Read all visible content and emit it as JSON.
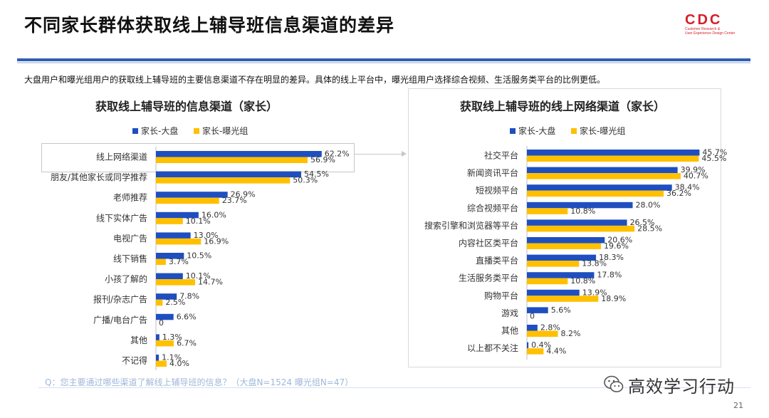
{
  "header": {
    "title": "不同家长群体获取线上辅导班信息渠道的差异",
    "logo_text": "CDC",
    "logo_sub_1": "Customer Research &",
    "logo_sub_2": "User Experience Design Center"
  },
  "summary": "大盘用户和曝光组用户的获取线上辅导班的主要信息渠道不存在明显的差异。具体的线上平台中，曝光组用户选择综合视频、生活服务类平台的比例更低。",
  "colors": {
    "series_1": "#1f4fbf",
    "series_2": "#ffc000",
    "accent": "#d5202a",
    "divider": "#2f5fb3"
  },
  "chart_data": [
    {
      "type": "bar",
      "orientation": "horizontal",
      "title": "获取线上辅导班的信息渠道（家长）",
      "legend_position": "top",
      "categories": [
        "线上网络渠道",
        "朋友/其他家长或同学推荐",
        "老师推荐",
        "线下实体广告",
        "电视广告",
        "线下销售",
        "小孩了解的",
        "报刊/杂志广告",
        "广播/电台广告",
        "其他",
        "不记得"
      ],
      "series": [
        {
          "name": "家长-大盘",
          "values": [
            62.2,
            54.5,
            26.9,
            16.0,
            13.0,
            10.5,
            10.1,
            7.8,
            6.6,
            1.3,
            1.1
          ],
          "labels": [
            "62.2%",
            "54.5%",
            "26.9%",
            "16.0%",
            "13.0%",
            "10.5%",
            "10.1%",
            "7.8%",
            "6.6%",
            "1.3%",
            "1.1%"
          ]
        },
        {
          "name": "家长-曝光组",
          "values": [
            56.9,
            50.3,
            23.7,
            10.1,
            16.9,
            3.7,
            14.7,
            2.5,
            0,
            6.7,
            4.0
          ],
          "labels": [
            "56.9%",
            "50.3%",
            "23.7%",
            "10.1%",
            "16.9%",
            "3.7%",
            "14.7%",
            "2.5%",
            "0",
            "6.7%",
            "4.0%"
          ]
        }
      ],
      "xlim": [
        0,
        70
      ]
    },
    {
      "type": "bar",
      "orientation": "horizontal",
      "title": "获取线上辅导班的线上网络渠道（家长）",
      "legend_position": "top",
      "categories": [
        "社交平台",
        "新闻资讯平台",
        "短视频平台",
        "综合视频平台",
        "搜索引擎和浏览器等平台",
        "内容社区类平台",
        "直播类平台",
        "生活服务类平台",
        "购物平台",
        "游戏",
        "其他",
        "以上都不关注"
      ],
      "series": [
        {
          "name": "家长-大盘",
          "values": [
            45.7,
            39.9,
            38.4,
            28.0,
            26.5,
            20.6,
            18.3,
            17.8,
            13.9,
            5.6,
            2.8,
            0.4
          ],
          "labels": [
            "45.7%",
            "39.9%",
            "38.4%",
            "28.0%",
            "26.5%",
            "20.6%",
            "18.3%",
            "17.8%",
            "13.9%",
            "5.6%",
            "2.8%",
            "0.4%"
          ]
        },
        {
          "name": "家长-曝光组",
          "values": [
            45.5,
            40.7,
            36.2,
            10.8,
            28.5,
            19.6,
            13.8,
            10.8,
            18.9,
            0,
            8.2,
            4.4
          ],
          "labels": [
            "45.5%",
            "40.7%",
            "36.2%",
            "10.8%",
            "28.5%",
            "19.6%",
            "13.8%",
            "10.8%",
            "18.9%",
            "0",
            "8.2%",
            "4.4%"
          ]
        }
      ],
      "xlim": [
        0,
        46
      ]
    }
  ],
  "footnote": "Q：您主要通过哪些渠道了解线上辅导班的信息？（大盘N=1524    曝光组N=47）",
  "watermark": {
    "text": "高效学习行动",
    "icon": "wechat-icon"
  },
  "page_number": "21"
}
